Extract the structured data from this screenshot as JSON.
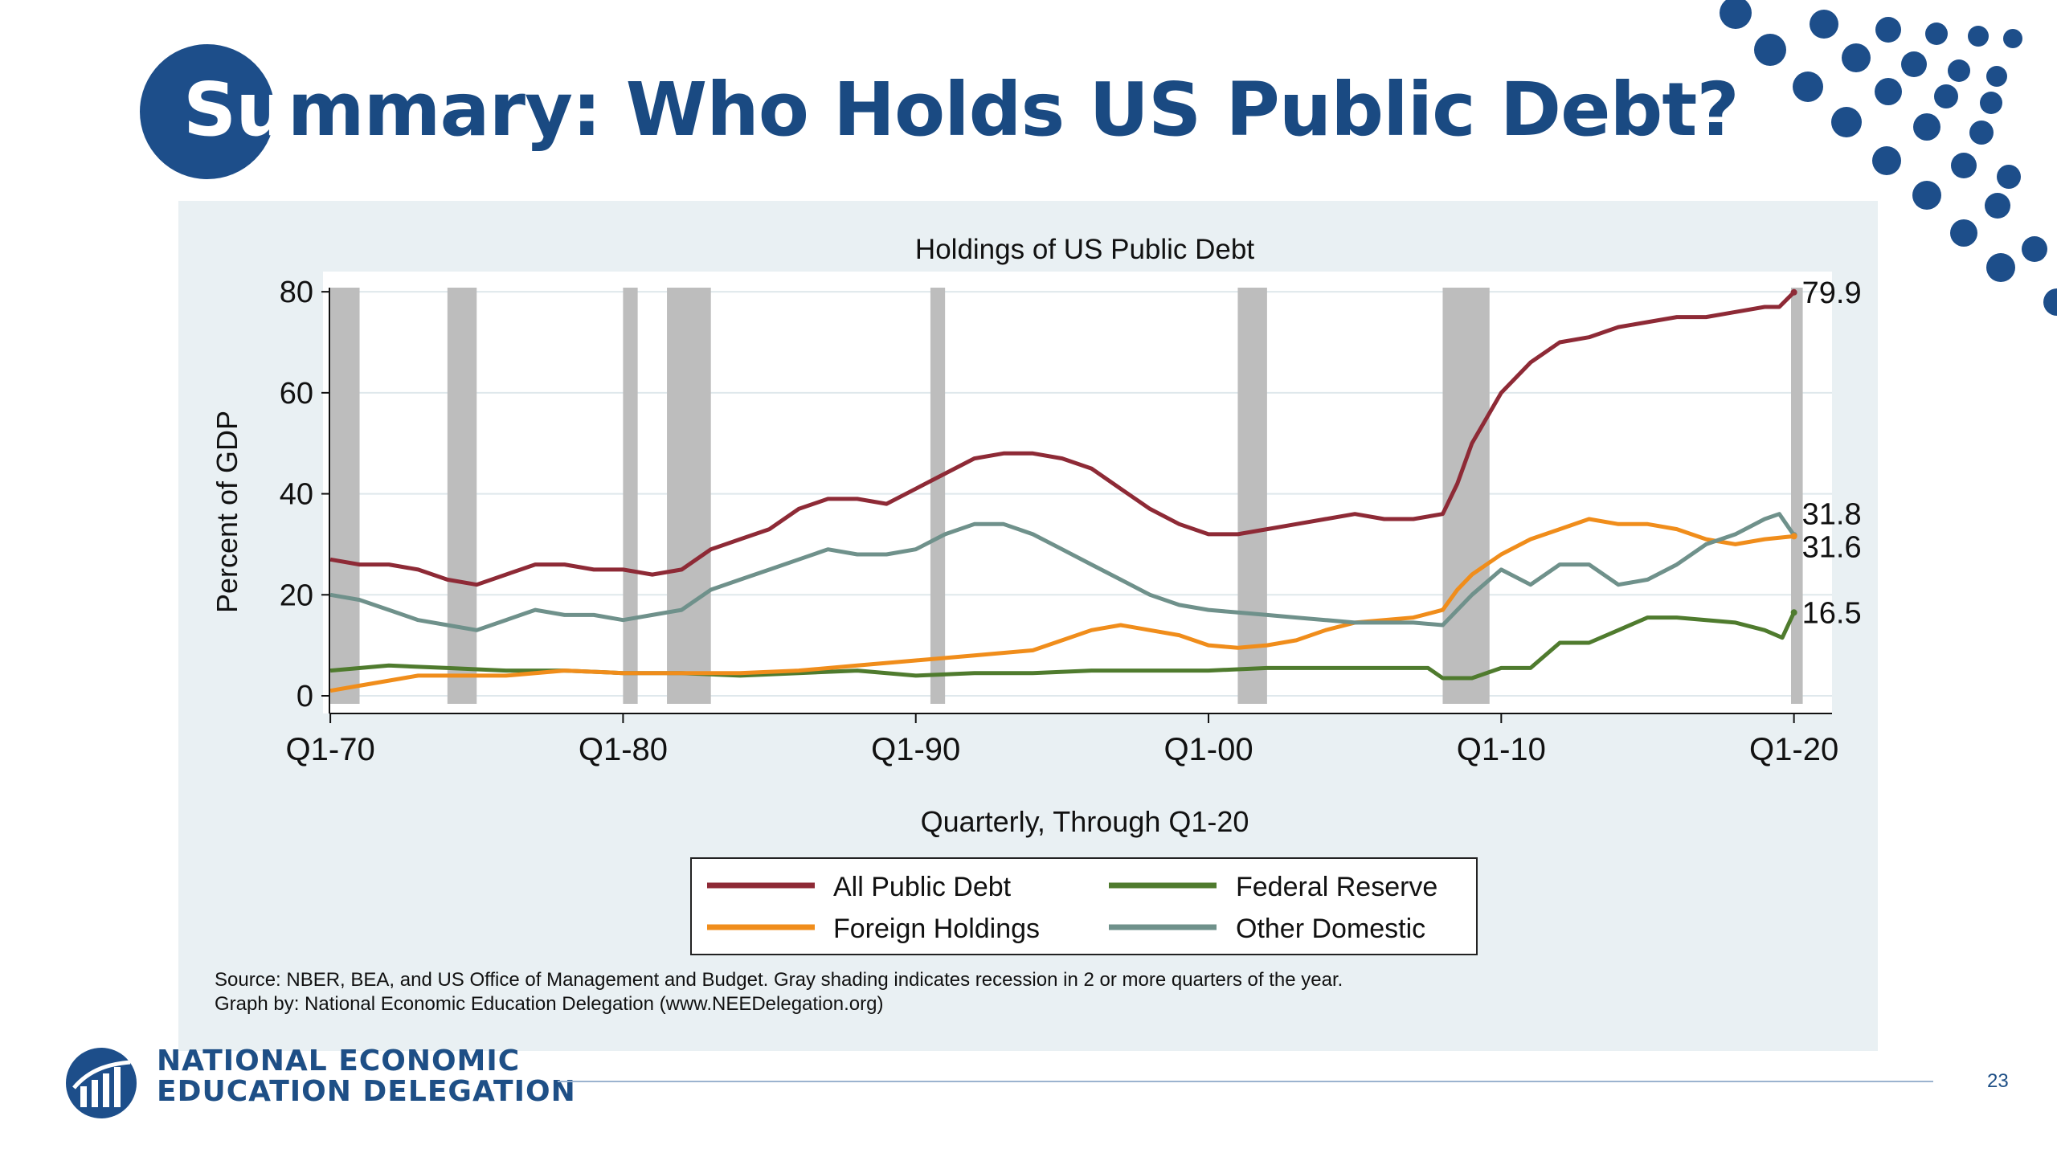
{
  "slide": {
    "title_lead": "Su",
    "title_rest": "mmary: Who Holds US Public Debt?",
    "page_number": "23",
    "org_line1": "NATIONAL ECONOMIC",
    "org_line2": "EDUCATION DELEGATION",
    "brand_color": "#1d4e8a"
  },
  "chart_data": {
    "type": "line",
    "title": "Holdings of US Public Debt",
    "xlabel": "Quarterly, Through Q1-20",
    "ylabel": "Percent of GDP",
    "xlim": [
      1969.75,
      2021.3
    ],
    "ylim": [
      -3.5,
      84
    ],
    "x_ticks": [
      {
        "value": 1970,
        "label": "Q1-70"
      },
      {
        "value": 1980,
        "label": "Q1-80"
      },
      {
        "value": 1990,
        "label": "Q1-90"
      },
      {
        "value": 2000,
        "label": "Q1-00"
      },
      {
        "value": 2010,
        "label": "Q1-10"
      },
      {
        "value": 2020,
        "label": "Q1-20"
      }
    ],
    "y_ticks": [
      0,
      20,
      40,
      60,
      80
    ],
    "grid": true,
    "legend_position": "bottom",
    "recession_note": "Gray shading indicates recession in 2 or more quarters of the year.",
    "recessions": [
      [
        1970,
        1971
      ],
      [
        1974,
        1975
      ],
      [
        1980,
        1980.5
      ],
      [
        1981.5,
        1983
      ],
      [
        1990.5,
        1991
      ],
      [
        2001,
        2002
      ],
      [
        2008,
        2009.6
      ],
      [
        2019.9,
        2020.3
      ]
    ],
    "recession_color": "#bdbdbd",
    "series": [
      {
        "name": "All Public Debt",
        "color": "#8e2a36",
        "x": [
          1970,
          1971,
          1972,
          1973,
          1974,
          1975,
          1976,
          1977,
          1978,
          1979,
          1980,
          1981,
          1982,
          1983,
          1984,
          1985,
          1986,
          1987,
          1988,
          1989,
          1990,
          1991,
          1992,
          1993,
          1994,
          1995,
          1996,
          1997,
          1998,
          1999,
          2000,
          2001,
          2002,
          2003,
          2004,
          2005,
          2006,
          2007,
          2008,
          2008.5,
          2009,
          2010,
          2011,
          2012,
          2013,
          2014,
          2015,
          2016,
          2017,
          2018,
          2019,
          2019.5,
          2020
        ],
        "y": [
          27,
          26,
          26,
          25,
          23,
          22,
          24,
          26,
          26,
          25,
          25,
          24,
          25,
          29,
          31,
          33,
          37,
          39,
          39,
          38,
          41,
          44,
          47,
          48,
          48,
          47,
          45,
          41,
          37,
          34,
          32,
          32,
          33,
          34,
          35,
          36,
          35,
          35,
          36,
          42,
          50,
          60,
          66,
          70,
          71,
          73,
          74,
          75,
          75,
          76,
          77,
          77,
          79.9
        ]
      },
      {
        "name": "Federal Reserve",
        "color": "#4f7b2e",
        "x": [
          1970,
          1972,
          1974,
          1976,
          1978,
          1980,
          1982,
          1984,
          1986,
          1988,
          1990,
          1992,
          1994,
          1996,
          1998,
          2000,
          2002,
          2004,
          2006,
          2007.5,
          2008,
          2009,
          2010,
          2011,
          2012,
          2013,
          2014,
          2015,
          2016,
          2017,
          2018,
          2019,
          2019.6,
          2020
        ],
        "y": [
          5,
          6,
          5.5,
          5,
          5,
          4.5,
          4.5,
          4,
          4.5,
          5,
          4,
          4.5,
          4.5,
          5,
          5,
          5,
          5.5,
          5.5,
          5.5,
          5.5,
          3.5,
          3.5,
          5.5,
          5.5,
          10.5,
          10.5,
          13,
          15.5,
          15.5,
          15,
          14.5,
          13,
          11.5,
          16.5
        ]
      },
      {
        "name": "Foreign Holdings",
        "color": "#f08d1b",
        "x": [
          1970,
          1971,
          1972,
          1973,
          1974,
          1976,
          1978,
          1980,
          1982,
          1984,
          1986,
          1988,
          1990,
          1992,
          1994,
          1995,
          1996,
          1997,
          1998,
          1999,
          2000,
          2001,
          2002,
          2003,
          2004,
          2005,
          2006,
          2007,
          2008,
          2008.5,
          2009,
          2010,
          2011,
          2012,
          2013,
          2014,
          2015,
          2016,
          2017,
          2018,
          2019,
          2020
        ],
        "y": [
          1,
          2,
          3,
          4,
          4,
          4,
          5,
          4.5,
          4.5,
          4.5,
          5,
          6,
          7,
          8,
          9,
          11,
          13,
          14,
          13,
          12,
          10,
          9.5,
          10,
          11,
          13,
          14.5,
          15,
          15.5,
          17,
          21,
          24,
          28,
          31,
          33,
          35,
          34,
          34,
          33,
          31,
          30,
          31,
          31.6
        ]
      },
      {
        "name": "Other Domestic",
        "color": "#6f918b",
        "x": [
          1970,
          1971,
          1972,
          1973,
          1974,
          1975,
          1976,
          1977,
          1978,
          1979,
          1980,
          1981,
          1982,
          1983,
          1984,
          1985,
          1986,
          1987,
          1988,
          1989,
          1990,
          1991,
          1992,
          1993,
          1994,
          1995,
          1996,
          1997,
          1998,
          1999,
          2000,
          2001,
          2002,
          2003,
          2004,
          2005,
          2006,
          2007,
          2008,
          2009,
          2010,
          2011,
          2012,
          2013,
          2014,
          2015,
          2016,
          2017,
          2018,
          2019,
          2019.5,
          2020
        ],
        "y": [
          20,
          19,
          17,
          15,
          14,
          13,
          15,
          17,
          16,
          16,
          15,
          16,
          17,
          21,
          23,
          25,
          27,
          29,
          28,
          28,
          29,
          32,
          34,
          34,
          32,
          29,
          26,
          23,
          20,
          18,
          17,
          16.5,
          16,
          15.5,
          15,
          14.5,
          14.5,
          14.5,
          14,
          20,
          25,
          22,
          26,
          26,
          22,
          23,
          26,
          30,
          32,
          35,
          36,
          31.8
        ]
      }
    ],
    "end_labels": [
      {
        "series": "All Public Debt",
        "value": 79.9,
        "label": "79.9"
      },
      {
        "series": "Other Domestic",
        "value": 31.8,
        "label": "31.8"
      },
      {
        "series": "Foreign Holdings",
        "value": 31.6,
        "label": "31.6"
      },
      {
        "series": "Federal Reserve",
        "value": 16.5,
        "label": "16.5"
      }
    ],
    "source_line1": "Source: NBER, BEA, and US Office of Management and Budget. Gray shading indicates recession in 2 or more quarters of the year.",
    "source_line2": "Graph by: National Economic Education Delegation (www.NEEDelegation.org)"
  }
}
